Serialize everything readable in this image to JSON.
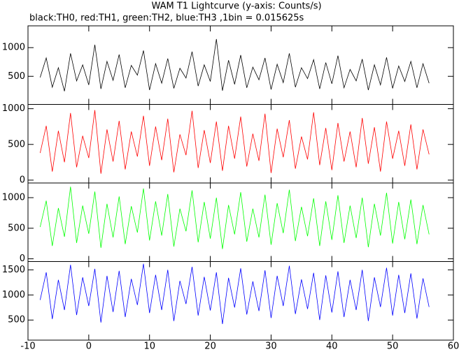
{
  "chart_data": [
    {
      "type": "line",
      "title": "WAM T1 Lightcurve (y-axis: Counts/s)",
      "subtitle": "black:TH0, red:TH1, green:TH2, blue:TH3 ,1bin = 0.015625s",
      "x": [
        -8,
        -7,
        -6,
        -5,
        -4,
        -3,
        -2,
        -1,
        0,
        1,
        2,
        3,
        4,
        5,
        6,
        7,
        8,
        9,
        10,
        11,
        12,
        13,
        14,
        15,
        16,
        17,
        18,
        19,
        20,
        21,
        22,
        23,
        24,
        25,
        26,
        27,
        28,
        29,
        30,
        31,
        32,
        33,
        34,
        35,
        36,
        37,
        38,
        39,
        40,
        41,
        42,
        43,
        44,
        45,
        46,
        47,
        48,
        49,
        50,
        51,
        52,
        53,
        54,
        55,
        56
      ],
      "series": [
        {
          "name": "TH0",
          "color": "#000000",
          "values": [
            480,
            820,
            310,
            650,
            240,
            900,
            420,
            700,
            350,
            1050,
            280,
            760,
            430,
            880,
            300,
            690,
            520,
            950,
            260,
            720,
            380,
            810,
            290,
            640,
            470,
            930,
            330,
            700,
            410,
            1150,
            250,
            780,
            360,
            870,
            300,
            660,
            440,
            820,
            270,
            710,
            390,
            900,
            310,
            650,
            460,
            790,
            280,
            740,
            370,
            860,
            300,
            620,
            420,
            800,
            260,
            700,
            350,
            830,
            290,
            680,
            410,
            760,
            300,
            720,
            380
          ]
        }
      ],
      "xlim": [
        -10,
        60
      ],
      "xticks": [
        -10,
        0,
        10,
        20,
        30,
        40,
        50,
        60
      ],
      "ylim": [
        10,
        1380
      ],
      "yticks": [
        500,
        1000
      ]
    },
    {
      "type": "line",
      "x": [
        -8,
        -7,
        -6,
        -5,
        -4,
        -3,
        -2,
        -1,
        0,
        1,
        2,
        3,
        4,
        5,
        6,
        7,
        8,
        9,
        10,
        11,
        12,
        13,
        14,
        15,
        16,
        17,
        18,
        19,
        20,
        21,
        22,
        23,
        24,
        25,
        26,
        27,
        28,
        29,
        30,
        31,
        32,
        33,
        34,
        35,
        36,
        37,
        38,
        39,
        40,
        41,
        42,
        43,
        44,
        45,
        46,
        47,
        48,
        49,
        50,
        51,
        52,
        53,
        54,
        55,
        56
      ],
      "series": [
        {
          "name": "TH1",
          "color": "#ff0000",
          "values": [
            380,
            760,
            120,
            690,
            250,
            940,
            180,
            620,
            310,
            980,
            90,
            710,
            260,
            830,
            150,
            680,
            330,
            900,
            200,
            750,
            280,
            860,
            110,
            640,
            350,
            970,
            170,
            700,
            240,
            820,
            130,
            760,
            300,
            890,
            190,
            650,
            270,
            930,
            100,
            720,
            320,
            840,
            160,
            610,
            290,
            950,
            210,
            730,
            140,
            800,
            260,
            680,
            180,
            870,
            230,
            740,
            120,
            820,
            300,
            690,
            200,
            780,
            150,
            710,
            360
          ]
        }
      ],
      "xlim": [
        -10,
        60
      ],
      "xticks": [
        -10,
        0,
        10,
        20,
        30,
        40,
        50,
        60
      ],
      "ylim": [
        -40,
        1060
      ],
      "yticks": [
        0,
        500,
        1000
      ]
    },
    {
      "type": "line",
      "x": [
        -8,
        -7,
        -6,
        -5,
        -4,
        -3,
        -2,
        -1,
        0,
        1,
        2,
        3,
        4,
        5,
        6,
        7,
        8,
        9,
        10,
        11,
        12,
        13,
        14,
        15,
        16,
        17,
        18,
        19,
        20,
        21,
        22,
        23,
        24,
        25,
        26,
        27,
        28,
        29,
        30,
        31,
        32,
        33,
        34,
        35,
        36,
        37,
        38,
        39,
        40,
        41,
        42,
        43,
        44,
        45,
        46,
        47,
        48,
        49,
        50,
        51,
        52,
        53,
        54,
        55,
        56
      ],
      "series": [
        {
          "name": "TH2",
          "color": "#00ff00",
          "values": [
            520,
            950,
            210,
            830,
            360,
            1180,
            260,
            870,
            410,
            1100,
            180,
            900,
            350,
            1020,
            240,
            860,
            430,
            1150,
            300,
            940,
            380,
            1060,
            200,
            820,
            450,
            1120,
            270,
            930,
            330,
            1000,
            160,
            880,
            400,
            1090,
            280,
            820,
            350,
            1050,
            230,
            910,
            420,
            1130,
            290,
            850,
            370,
            990,
            210,
            940,
            310,
            1040,
            260,
            870,
            340,
            1000,
            190,
            900,
            380,
            1080,
            250,
            930,
            320,
            970,
            240,
            880,
            400
          ]
        }
      ],
      "xlim": [
        -10,
        60
      ],
      "xticks": [
        -10,
        0,
        10,
        20,
        30,
        40,
        50,
        60
      ],
      "ylim": [
        -45,
        1240
      ],
      "yticks": [
        0,
        500,
        1000
      ]
    },
    {
      "type": "line",
      "x": [
        -8,
        -7,
        -6,
        -5,
        -4,
        -3,
        -2,
        -1,
        0,
        1,
        2,
        3,
        4,
        5,
        6,
        7,
        8,
        9,
        10,
        11,
        12,
        13,
        14,
        15,
        16,
        17,
        18,
        19,
        20,
        21,
        22,
        23,
        24,
        25,
        26,
        27,
        28,
        29,
        30,
        31,
        32,
        33,
        34,
        35,
        36,
        37,
        38,
        39,
        40,
        41,
        42,
        43,
        44,
        45,
        46,
        47,
        48,
        49,
        50,
        51,
        52,
        53,
        54,
        55,
        56
      ],
      "series": [
        {
          "name": "TH3",
          "color": "#0000ff",
          "values": [
            900,
            1450,
            520,
            1300,
            700,
            1600,
            600,
            1350,
            780,
            1520,
            450,
            1380,
            660,
            1480,
            560,
            1320,
            800,
            1620,
            640,
            1400,
            700,
            1500,
            480,
            1280,
            820,
            1560,
            590,
            1360,
            690,
            1450,
            420,
            1340,
            750,
            1530,
            610,
            1270,
            680,
            1490,
            540,
            1380,
            780,
            1580,
            620,
            1310,
            720,
            1440,
            500,
            1390,
            650,
            1470,
            560,
            1300,
            700,
            1500,
            480,
            1350,
            760,
            1540,
            590,
            1400,
            640,
            1430,
            530,
            1330,
            760
          ]
        }
      ],
      "xlim": [
        -10,
        60
      ],
      "xticks": [
        -10,
        0,
        10,
        20,
        30,
        40,
        50,
        60
      ],
      "ylim": [
        100,
        1665
      ],
      "yticks": [
        500,
        1000,
        1500
      ]
    }
  ]
}
